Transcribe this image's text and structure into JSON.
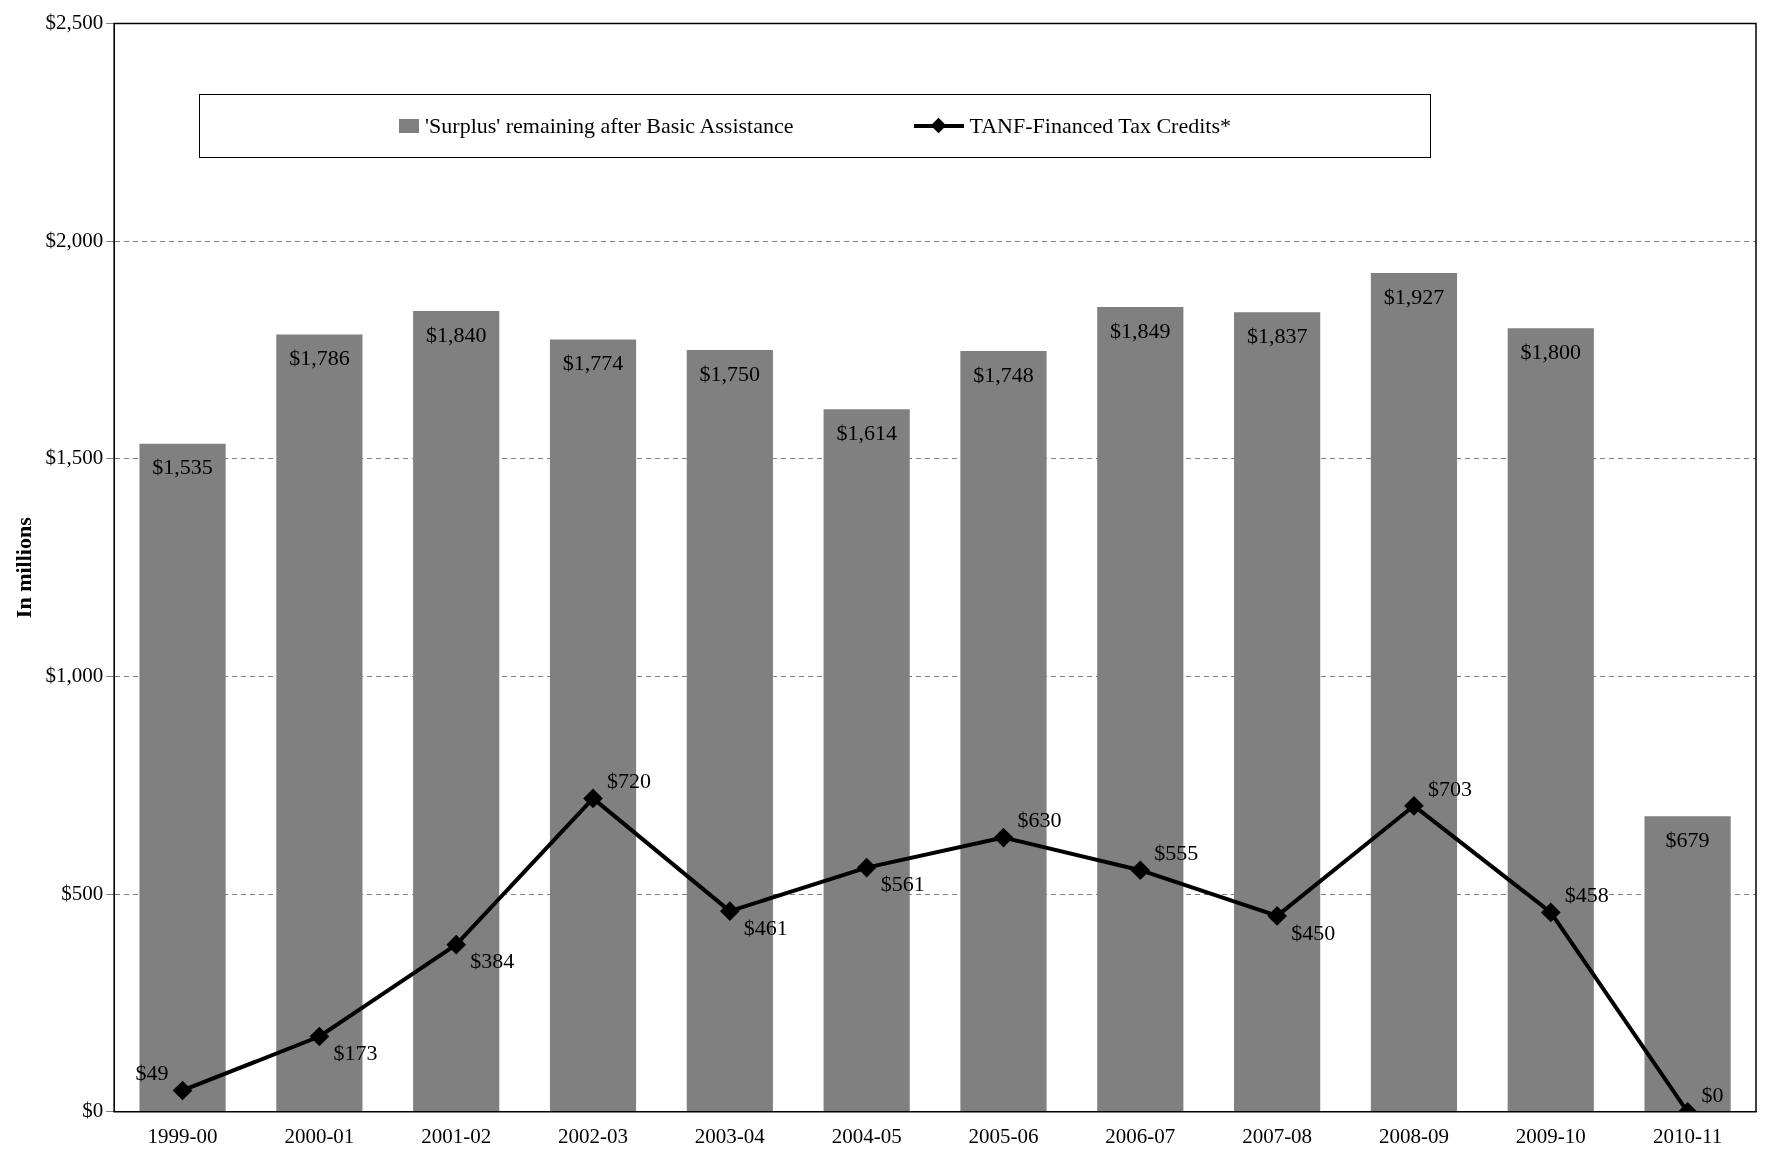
{
  "chart_data": {
    "type": "bar",
    "ylabel": "In millions",
    "categories": [
      "1999-00",
      "2000-01",
      "2001-02",
      "2002-03",
      "2003-04",
      "2004-05",
      "2005-06",
      "2006-07",
      "2007-08",
      "2008-09",
      "2009-10",
      "2010-11"
    ],
    "series": [
      {
        "name": "'Surplus' remaining after Basic Assistance",
        "color": "#808080",
        "values": [
          1535,
          1786,
          1840,
          1774,
          1750,
          1614,
          1748,
          1849,
          1837,
          1927,
          1800,
          679
        ],
        "value_labels": [
          "$1,535",
          "$1,786",
          "$1,840",
          "$1,774",
          "$1,750",
          "$1,614",
          "$1,748",
          "$1,849",
          "$1,837",
          "$1,927",
          "$1,800",
          "$679"
        ]
      },
      {
        "name": "TANF-Financed Tax Credits*",
        "type": "line",
        "color": "#000000",
        "marker": "diamond",
        "values": [
          49,
          173,
          384,
          720,
          461,
          561,
          630,
          555,
          450,
          703,
          458,
          0
        ],
        "value_labels": [
          "$49",
          "$173",
          "$384",
          "$720",
          "$461",
          "$561",
          "$630",
          "$555",
          "$450",
          "$703",
          "$458",
          "$0"
        ]
      }
    ],
    "ylim": [
      0,
      2500
    ],
    "yticks": [
      {
        "value": 0,
        "label": "$0"
      },
      {
        "value": 500,
        "label": "$500"
      },
      {
        "value": 1000,
        "label": "$1,000"
      },
      {
        "value": 1500,
        "label": "$1,500"
      },
      {
        "value": 2000,
        "label": "$2,000"
      },
      {
        "value": 2500,
        "label": "$2,500"
      }
    ],
    "grid": "y",
    "legend": "top"
  }
}
